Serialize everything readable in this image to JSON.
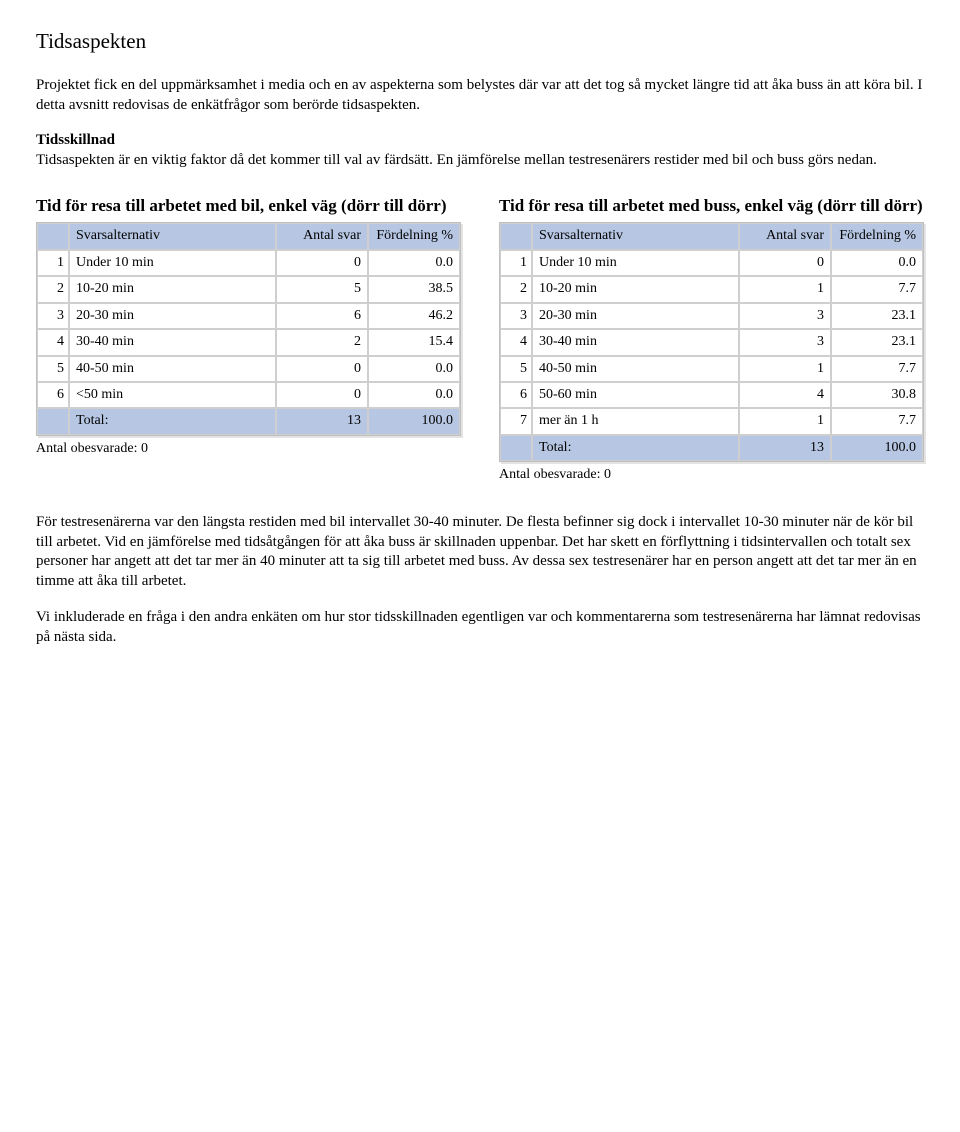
{
  "heading": "Tidsaspekten",
  "intro": "Projektet fick en del uppmärksamhet i media och en av aspekterna som belystes där var att det tog så mycket längre tid att åka buss än att köra bil. I detta avsnitt redovisas de enkätfrågor som berörde tidsaspekten.",
  "sub_heading": "Tidsskillnad",
  "sub_text": "Tidsaspekten är en viktig faktor då det kommer till val av färdsätt. En jämförelse mellan testresenärers restider med bil och buss görs nedan.",
  "table_common": {
    "header_alt": "Svarsalternativ",
    "header_count": "Antal svar",
    "header_pct": "Fördelning %",
    "total_label": "Total:",
    "unanswered_label": "Antal obesvarade: 0",
    "header_bg": "#b7c7e3",
    "cell_bg": "#ffffff",
    "border_color": "#cfcfcf",
    "font": "Comic Sans MS"
  },
  "table_bil": {
    "title": "Tid för resa till arbetet med bil, enkel väg (dörr till dörr)",
    "rows": [
      {
        "n": "1",
        "label": "Under 10 min",
        "count": "0",
        "pct": "0.0"
      },
      {
        "n": "2",
        "label": "10-20 min",
        "count": "5",
        "pct": "38.5"
      },
      {
        "n": "3",
        "label": "20-30 min",
        "count": "6",
        "pct": "46.2"
      },
      {
        "n": "4",
        "label": "30-40 min",
        "count": "2",
        "pct": "15.4"
      },
      {
        "n": "5",
        "label": "40-50 min",
        "count": "0",
        "pct": "0.0"
      },
      {
        "n": "6",
        "label": "<50 min",
        "count": "0",
        "pct": "0.0"
      }
    ],
    "total_count": "13",
    "total_pct": "100.0"
  },
  "table_buss": {
    "title": "Tid för resa till arbetet med buss, enkel väg (dörr till dörr)",
    "rows": [
      {
        "n": "1",
        "label": "Under 10 min",
        "count": "0",
        "pct": "0.0"
      },
      {
        "n": "2",
        "label": "10-20 min",
        "count": "1",
        "pct": "7.7"
      },
      {
        "n": "3",
        "label": "20-30 min",
        "count": "3",
        "pct": "23.1"
      },
      {
        "n": "4",
        "label": "30-40 min",
        "count": "3",
        "pct": "23.1"
      },
      {
        "n": "5",
        "label": "40-50 min",
        "count": "1",
        "pct": "7.7"
      },
      {
        "n": "6",
        "label": "50-60 min",
        "count": "4",
        "pct": "30.8"
      },
      {
        "n": "7",
        "label": "mer än 1 h",
        "count": "1",
        "pct": "7.7"
      }
    ],
    "total_count": "13",
    "total_pct": "100.0"
  },
  "closing_para1": "För testresenärerna var den längsta restiden med bil intervallet 30-40 minuter. De flesta befinner sig dock i intervallet 10-30 minuter när de kör bil till arbetet. Vid en jämförelse med tidsåtgången för att åka buss är skillnaden uppenbar. Det har skett en förflyttning i tidsintervallen och totalt sex personer har angett att det tar mer än 40 minuter att ta sig till arbetet med buss. Av dessa sex testresenärer har en person angett att det tar mer än en timme att åka till arbetet.",
  "closing_para2": "Vi inkluderade en fråga i den andra enkäten om hur stor tidsskillnaden egentligen var och kommentarerna som testresenärerna har lämnat redovisas på nästa sida."
}
